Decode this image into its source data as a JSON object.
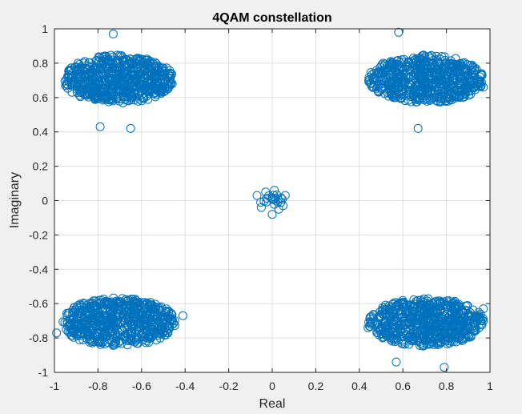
{
  "chart_data": {
    "type": "scatter",
    "title": "4QAM constellation",
    "xlabel": "Real",
    "ylabel": "Imaginary",
    "xlim": [
      -1,
      1
    ],
    "ylim": [
      -1,
      1
    ],
    "xticks": [
      -1,
      -0.8,
      -0.6,
      -0.4,
      -0.2,
      0,
      0.2,
      0.4,
      0.6,
      0.8,
      1
    ],
    "yticks": [
      -1,
      -0.8,
      -0.6,
      -0.4,
      -0.2,
      0,
      0.2,
      0.4,
      0.6,
      0.8,
      1
    ],
    "xtick_labels": [
      "-1",
      "-0.8",
      "-0.6",
      "-0.4",
      "-0.2",
      "0",
      "0.2",
      "0.4",
      "0.6",
      "0.8",
      "1"
    ],
    "ytick_labels": [
      "-1",
      "-0.8",
      "-0.6",
      "-0.4",
      "-0.2",
      "0",
      "0.2",
      "0.4",
      "0.6",
      "0.8",
      "1"
    ],
    "grid": true,
    "marker": "open-circle",
    "color": "#0072BD",
    "clusters": [
      {
        "center": [
          -0.707,
          0.707
        ],
        "spread": [
          0.24,
          0.13
        ]
      },
      {
        "center": [
          0.707,
          0.707
        ],
        "spread": [
          0.25,
          0.13
        ]
      },
      {
        "center": [
          -0.707,
          -0.707
        ],
        "spread": [
          0.25,
          0.13
        ]
      },
      {
        "center": [
          0.707,
          -0.707
        ],
        "spread": [
          0.25,
          0.13
        ]
      },
      {
        "center": [
          0,
          0
        ],
        "spread": [
          0.06,
          0.04
        ]
      }
    ],
    "outliers": [
      [
        -0.79,
        0.43
      ],
      [
        -0.65,
        0.42
      ],
      [
        0.67,
        0.42
      ],
      [
        -0.41,
        -0.67
      ],
      [
        -0.99,
        -0.77
      ],
      [
        0.57,
        -0.94
      ],
      [
        0.79,
        -0.97
      ],
      [
        0.58,
        0.98
      ],
      [
        -0.73,
        0.97
      ],
      [
        0.97,
        0.66
      ],
      [
        0.44,
        -0.74
      ],
      [
        0.97,
        -0.63
      ],
      [
        -0.07,
        0.03
      ],
      [
        0.06,
        0.03
      ],
      [
        0.0,
        -0.08
      ],
      [
        0.01,
        0.06
      ],
      [
        -0.05,
        -0.04
      ],
      [
        0.05,
        -0.03
      ],
      [
        -0.03,
        0.05
      ],
      [
        0.03,
        -0.05
      ]
    ]
  }
}
